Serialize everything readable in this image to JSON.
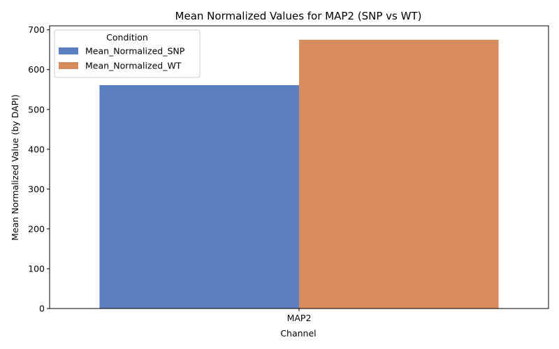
{
  "chart_data": {
    "type": "bar",
    "title": "Mean Normalized Values for MAP2 (SNP vs WT)",
    "xlabel": "Channel",
    "ylabel": "Mean Normalized Value (by DAPI)",
    "categories": [
      "MAP2"
    ],
    "series": [
      {
        "name": "Mean_Normalized_SNP",
        "values": [
          561
        ],
        "color": "#5b7fc1"
      },
      {
        "name": "Mean_Normalized_WT",
        "values": [
          675
        ],
        "color": "#d88b5f"
      }
    ],
    "ylim": [
      0,
      710
    ],
    "yticks": [
      0,
      100,
      200,
      300,
      400,
      500,
      600,
      700
    ],
    "grid": false,
    "legend": {
      "title": "Condition",
      "placement": "top-left"
    }
  }
}
